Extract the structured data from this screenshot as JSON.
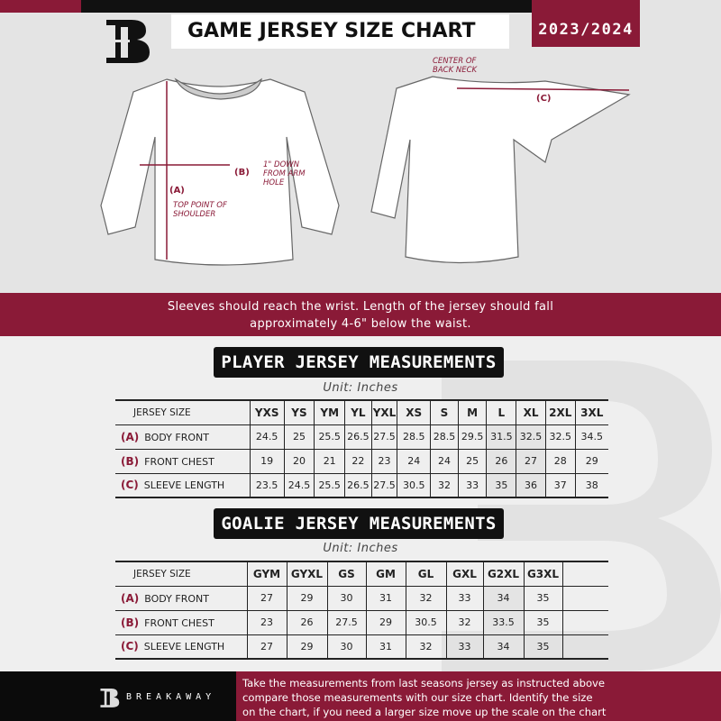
{
  "header": {
    "title": "GAME JERSEY SIZE CHART",
    "season": "2023/2024",
    "logo_letter": "B"
  },
  "diagram": {
    "center_back_neck": "CENTER OF BACK NECK",
    "label_a": "(A)",
    "label_b": "(B)",
    "label_c": "(C)",
    "top_point": "TOP POINT OF SHOULDER",
    "one_inch_down": "1\" DOWN FROM ARM HOLE"
  },
  "banner": {
    "line1": "Sleeves should reach the wrist. Length of the jersey should fall",
    "line2": "approximately 4-6\" below the waist."
  },
  "player": {
    "title": "PLAYER JERSEY MEASUREMENTS",
    "unit": "Unit: Inches",
    "header_label": "JERSEY SIZE",
    "sizes": [
      "YXS",
      "YS",
      "YM",
      "YL",
      "YXL",
      "XS",
      "S",
      "M",
      "L",
      "XL",
      "2XL",
      "3XL"
    ],
    "rows": [
      {
        "letter": "(A)",
        "name": "BODY FRONT",
        "values": [
          "24.5",
          "25",
          "25.5",
          "26.5",
          "27.5",
          "28.5",
          "28.5",
          "29.5",
          "31.5",
          "32.5",
          "32.5",
          "34.5"
        ]
      },
      {
        "letter": "(B)",
        "name": "FRONT CHEST",
        "values": [
          "19",
          "20",
          "21",
          "22",
          "23",
          "24",
          "24",
          "25",
          "26",
          "27",
          "28",
          "29"
        ]
      },
      {
        "letter": "(C)",
        "name": "SLEEVE LENGTH",
        "values": [
          "23.5",
          "24.5",
          "25.5",
          "26.5",
          "27.5",
          "30.5",
          "32",
          "33",
          "35",
          "36",
          "37",
          "38"
        ]
      }
    ]
  },
  "goalie": {
    "title": "GOALIE JERSEY MEASUREMENTS",
    "unit": "Unit: Inches",
    "header_label": "JERSEY SIZE",
    "sizes": [
      "GYM",
      "GYXL",
      "GS",
      "GM",
      "GL",
      "GXL",
      "G2XL",
      "G3XL",
      ""
    ],
    "rows": [
      {
        "letter": "(A)",
        "name": "BODY FRONT",
        "values": [
          "27",
          "29",
          "30",
          "31",
          "32",
          "33",
          "34",
          "35",
          ""
        ]
      },
      {
        "letter": "(B)",
        "name": "FRONT CHEST",
        "values": [
          "23",
          "26",
          "27.5",
          "29",
          "30.5",
          "32",
          "33.5",
          "35",
          ""
        ]
      },
      {
        "letter": "(C)",
        "name": "SLEEVE LENGTH",
        "values": [
          "27",
          "29",
          "30",
          "31",
          "32",
          "33",
          "34",
          "35",
          ""
        ]
      }
    ]
  },
  "footer": {
    "brand": "BREAKAWAY",
    "line1": "Take the measurements from last seasons jersey as instructed above",
    "line2": "compare those measurements  with our size chart. Identify the size",
    "line3": "on the chart, if you need a larger size move up the scale on the chart"
  },
  "colors": {
    "accent": "#8a1a37",
    "dark": "#111111"
  }
}
